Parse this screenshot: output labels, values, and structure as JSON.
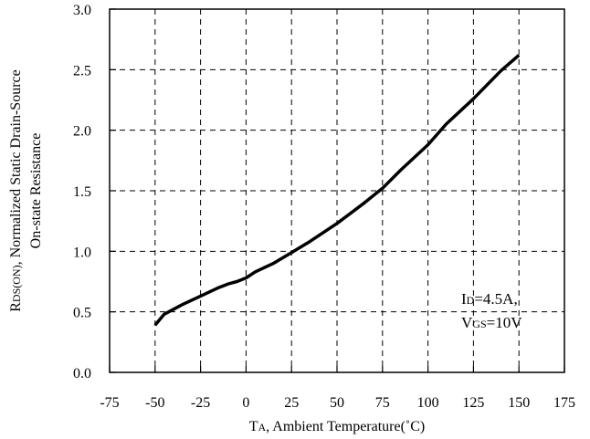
{
  "chart_data": {
    "type": "line",
    "title": "",
    "xlabel_parts": [
      "T",
      "A",
      ", Ambient Temperature(˚C)"
    ],
    "ylabel_line1_parts": [
      "R",
      "DS(ON)",
      ", Normalized Static Drain-Source"
    ],
    "ylabel_line2": "On-state Resistance",
    "xlim": [
      -75,
      175
    ],
    "ylim": [
      0.0,
      3.0
    ],
    "xticks": [
      -75,
      -50,
      -25,
      0,
      25,
      50,
      75,
      100,
      125,
      150,
      175
    ],
    "xtick_labels": [
      "-75",
      "-50",
      "-25",
      "0",
      "25",
      "50",
      "75",
      "100",
      "125",
      "150",
      "175"
    ],
    "yticks": [
      0.0,
      0.5,
      1.0,
      1.5,
      2.0,
      2.5,
      3.0
    ],
    "ytick_labels": [
      "0.0",
      "0.5",
      "1.0",
      "1.5",
      "2.0",
      "2.5",
      "3.0"
    ],
    "grid": true,
    "grid_style": "dashed",
    "annotation": {
      "line1_parts": [
        "I",
        "D",
        "=4.5A,"
      ],
      "line2_parts": [
        "V",
        "GS",
        "=10V"
      ],
      "placement": "lower-right"
    },
    "series": [
      {
        "x": [
          -50,
          -45,
          -35,
          -25,
          -15,
          -10,
          -5,
          0,
          5,
          15,
          25,
          35,
          50,
          65,
          75,
          85,
          100,
          110,
          125,
          140,
          150
        ],
        "y": [
          0.39,
          0.48,
          0.56,
          0.63,
          0.7,
          0.73,
          0.75,
          0.78,
          0.83,
          0.9,
          0.99,
          1.08,
          1.23,
          1.4,
          1.52,
          1.67,
          1.88,
          2.05,
          2.26,
          2.49,
          2.62
        ]
      }
    ]
  }
}
